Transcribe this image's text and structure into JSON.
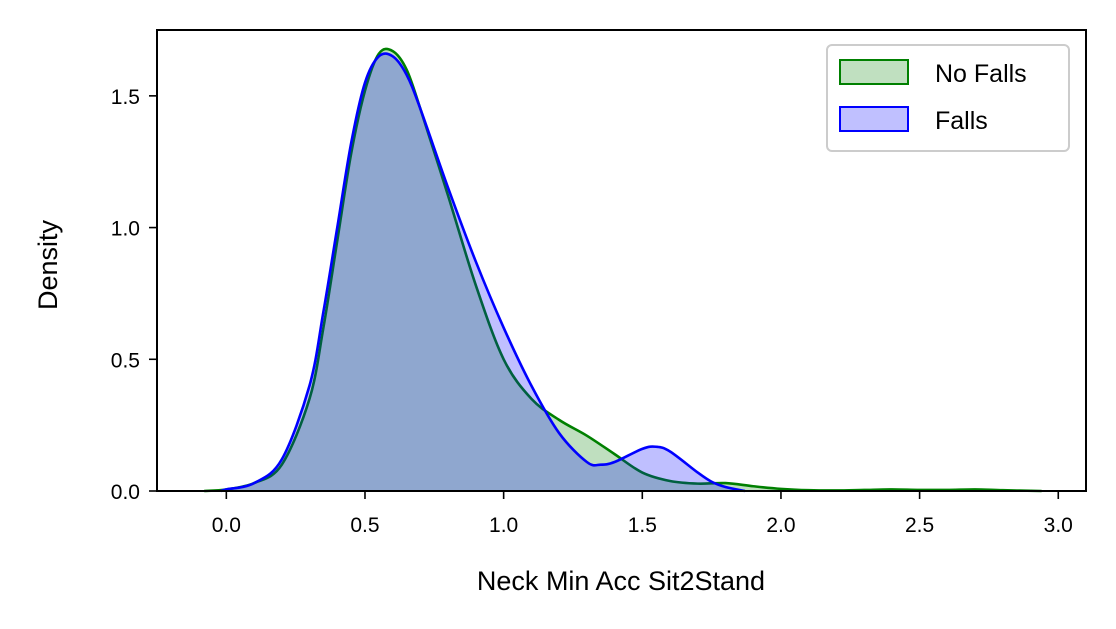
{
  "chart_data": {
    "type": "area",
    "xlabel": "Neck Min Acc Sit2Stand",
    "ylabel": "Density",
    "xlim": [
      -0.25,
      3.1
    ],
    "ylim": [
      0,
      1.75
    ],
    "x_ticks": [
      "0.0",
      "0.5",
      "1.0",
      "1.5",
      "2.0",
      "2.5",
      "3.0"
    ],
    "y_ticks": [
      "0.0",
      "0.5",
      "1.0",
      "1.5"
    ],
    "grid": false,
    "legend_position": "top-right",
    "series": [
      {
        "name": "No Falls",
        "color": "#008000",
        "fill": "#c0e0c0",
        "x": [
          -0.08,
          0.0,
          0.1,
          0.2,
          0.3,
          0.35,
          0.4,
          0.45,
          0.5,
          0.55,
          0.6,
          0.65,
          0.7,
          0.8,
          0.9,
          1.0,
          1.1,
          1.2,
          1.3,
          1.4,
          1.5,
          1.6,
          1.7,
          1.8,
          1.9,
          2.0,
          2.1,
          2.2,
          2.3,
          2.4,
          2.5,
          2.6,
          2.7,
          2.8,
          2.94
        ],
        "y": [
          0.0,
          0.006,
          0.03,
          0.1,
          0.35,
          0.62,
          0.95,
          1.28,
          1.52,
          1.66,
          1.67,
          1.6,
          1.45,
          1.12,
          0.78,
          0.5,
          0.35,
          0.27,
          0.21,
          0.14,
          0.07,
          0.038,
          0.028,
          0.03,
          0.018,
          0.008,
          0.003,
          0.002,
          0.004,
          0.006,
          0.004,
          0.004,
          0.006,
          0.003,
          0.0
        ]
      },
      {
        "name": "Falls",
        "color": "#0000ff",
        "fill": "#c0c0ff",
        "x": [
          -0.02,
          0.0,
          0.1,
          0.2,
          0.3,
          0.35,
          0.4,
          0.45,
          0.5,
          0.55,
          0.6,
          0.65,
          0.7,
          0.8,
          0.9,
          1.0,
          1.1,
          1.2,
          1.3,
          1.35,
          1.4,
          1.5,
          1.55,
          1.6,
          1.7,
          1.75,
          1.8,
          1.87
        ],
        "y": [
          0.0,
          0.006,
          0.03,
          0.12,
          0.4,
          0.68,
          1.0,
          1.32,
          1.55,
          1.65,
          1.65,
          1.58,
          1.45,
          1.15,
          0.87,
          0.62,
          0.4,
          0.22,
          0.11,
          0.1,
          0.11,
          0.16,
          0.168,
          0.15,
          0.07,
          0.035,
          0.015,
          0.0
        ]
      }
    ]
  }
}
